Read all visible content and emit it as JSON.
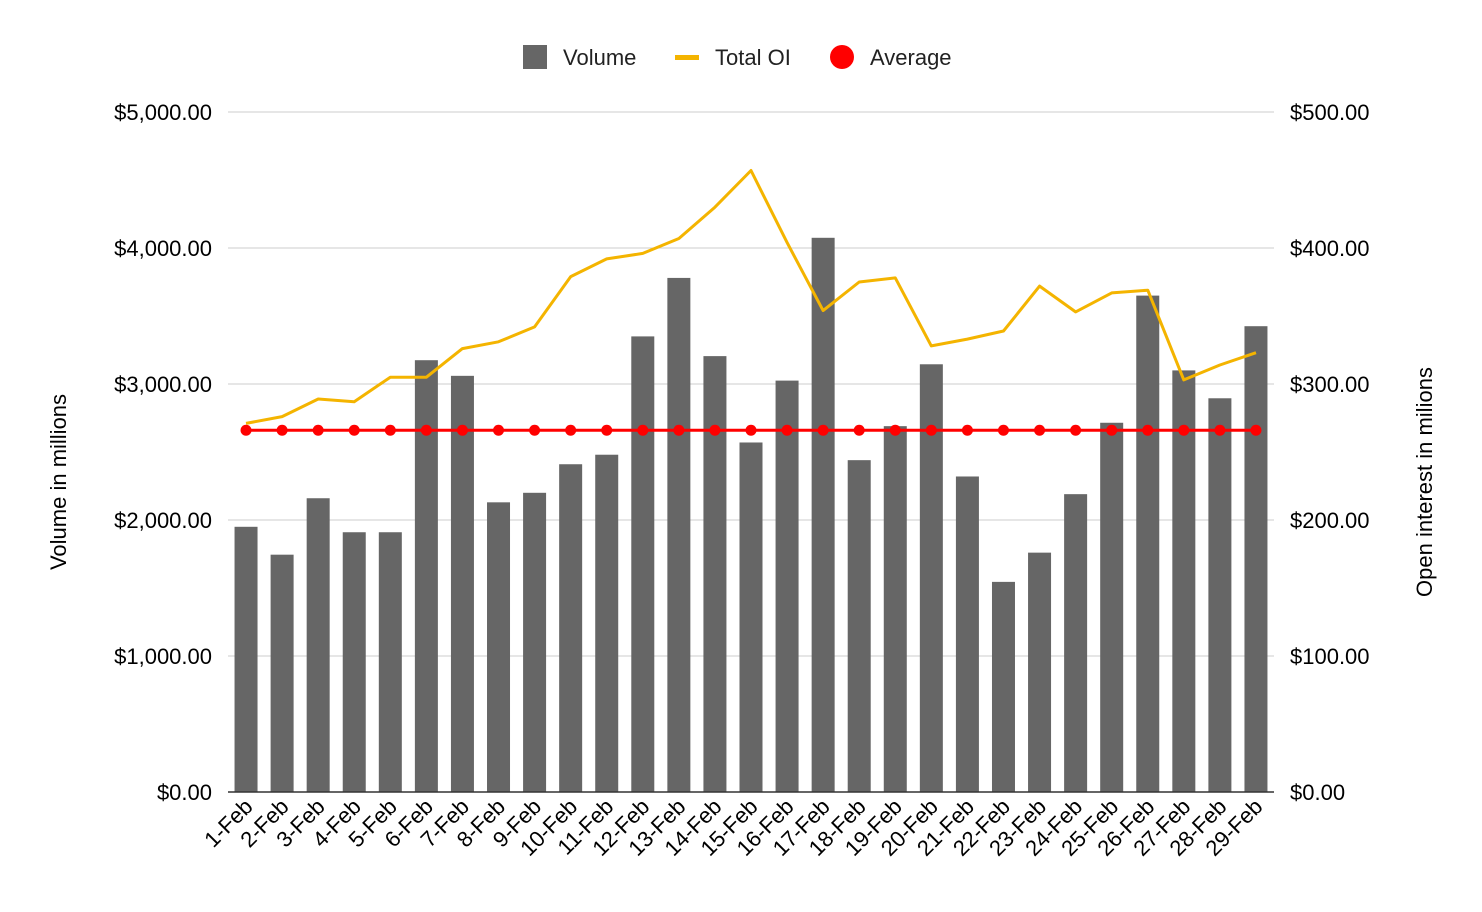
{
  "chart_data": {
    "type": "bar",
    "categories": [
      "1-Feb",
      "2-Feb",
      "3-Feb",
      "4-Feb",
      "5-Feb",
      "6-Feb",
      "7-Feb",
      "8-Feb",
      "9-Feb",
      "10-Feb",
      "11-Feb",
      "12-Feb",
      "13-Feb",
      "14-Feb",
      "15-Feb",
      "16-Feb",
      "17-Feb",
      "18-Feb",
      "19-Feb",
      "20-Feb",
      "21-Feb",
      "22-Feb",
      "23-Feb",
      "24-Feb",
      "25-Feb",
      "26-Feb",
      "27-Feb",
      "28-Feb",
      "29-Feb"
    ],
    "series": [
      {
        "name": "Volume",
        "type": "bar",
        "axis": "left",
        "color": "#666666",
        "values": [
          1950,
          1745,
          2160,
          1910,
          1910,
          3175,
          3060,
          2130,
          2200,
          2410,
          2480,
          3350,
          3780,
          3205,
          2570,
          3025,
          4075,
          2440,
          2690,
          3145,
          2320,
          1545,
          1760,
          2190,
          2715,
          3650,
          3100,
          2895,
          3425
        ]
      },
      {
        "name": "Total OI",
        "type": "line",
        "axis": "right",
        "color": "#F4B400",
        "values": [
          271,
          276,
          289,
          287,
          305,
          305,
          326,
          331,
          342,
          379,
          392,
          396,
          407,
          430,
          457,
          404,
          354,
          375,
          378,
          328,
          333,
          339,
          372,
          353,
          367,
          369,
          303,
          314,
          323
        ]
      },
      {
        "name": "Average",
        "type": "line",
        "axis": "left",
        "color": "#FF0000",
        "values": [
          2660,
          2660,
          2660,
          2660,
          2660,
          2660,
          2660,
          2660,
          2660,
          2660,
          2660,
          2660,
          2660,
          2660,
          2660,
          2660,
          2660,
          2660,
          2660,
          2660,
          2660,
          2660,
          2660,
          2660,
          2660,
          2660,
          2660,
          2660,
          2660
        ]
      }
    ],
    "y_left": {
      "label": "Volume in millions",
      "ylim": [
        0,
        5000
      ],
      "ticks": [
        0,
        1000,
        2000,
        3000,
        4000,
        5000
      ],
      "tick_labels": [
        "$0.00",
        "$1,000.00",
        "$2,000.00",
        "$3,000.00",
        "$4,000.00",
        "$5,000.00"
      ]
    },
    "y_right": {
      "label": "Open interest in milions",
      "ylim": [
        0,
        500
      ],
      "ticks": [
        0,
        100,
        200,
        300,
        400,
        500
      ],
      "tick_labels": [
        "$0.00",
        "$100.00",
        "$200.00",
        "$300.00",
        "$400.00",
        "$500.00"
      ]
    },
    "grid": true,
    "legend_position": "top-center"
  }
}
